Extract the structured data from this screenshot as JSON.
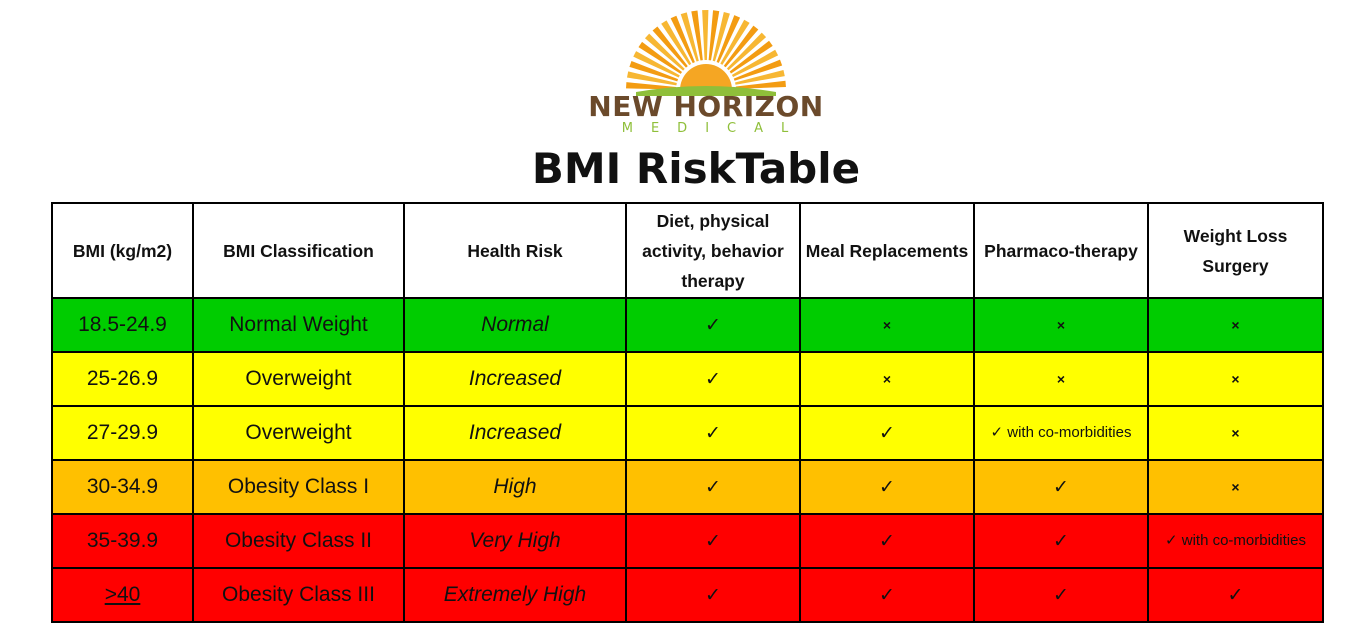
{
  "logo": {
    "brand": "NEW HORIZON",
    "sub": "MEDICAL",
    "colors": {
      "sun": "#f5a623",
      "brand_text": "#6b4a2b",
      "hills": "#8fbf3a"
    }
  },
  "title": "BMI RiskTable",
  "table": {
    "headers": [
      "BMI (kg/m2)",
      "BMI Classification",
      "Health Risk",
      "Diet, physical activity, behavior therapy",
      "Meal Replacements",
      "Pharmaco-therapy",
      "Weight Loss Surgery"
    ],
    "rows": [
      {
        "bmi": "18.5-24.9",
        "classification": "Normal Weight",
        "risk": "Normal",
        "color": "#00cc00",
        "diet": "✓",
        "meal": "×",
        "pharma": "×",
        "surgery": "×"
      },
      {
        "bmi": "25-26.9",
        "classification": "Overweight",
        "risk": "Increased",
        "color": "#ffff00",
        "diet": "✓",
        "meal": "×",
        "pharma": "×",
        "surgery": "×"
      },
      {
        "bmi": "27-29.9",
        "classification": "Overweight",
        "risk": "Increased",
        "color": "#ffff00",
        "diet": "✓",
        "meal": "✓",
        "pharma": "✓ with co-morbidities",
        "surgery": "×"
      },
      {
        "bmi": "30-34.9",
        "classification": "Obesity Class I",
        "risk": "High",
        "color": "#ffc000",
        "diet": "✓",
        "meal": "✓",
        "pharma": "✓",
        "surgery": "×"
      },
      {
        "bmi": "35-39.9",
        "classification": "Obesity Class II",
        "risk": "Very High",
        "color": "#ff0000",
        "diet": "✓",
        "meal": "✓",
        "pharma": "✓",
        "surgery": "✓ with co-morbidities"
      },
      {
        "bmi": ">40",
        "classification": "Obesity Class III",
        "risk": "Extremely High",
        "color": "#ff0000",
        "diet": "✓",
        "meal": "✓",
        "pharma": "✓",
        "surgery": "✓"
      }
    ]
  }
}
